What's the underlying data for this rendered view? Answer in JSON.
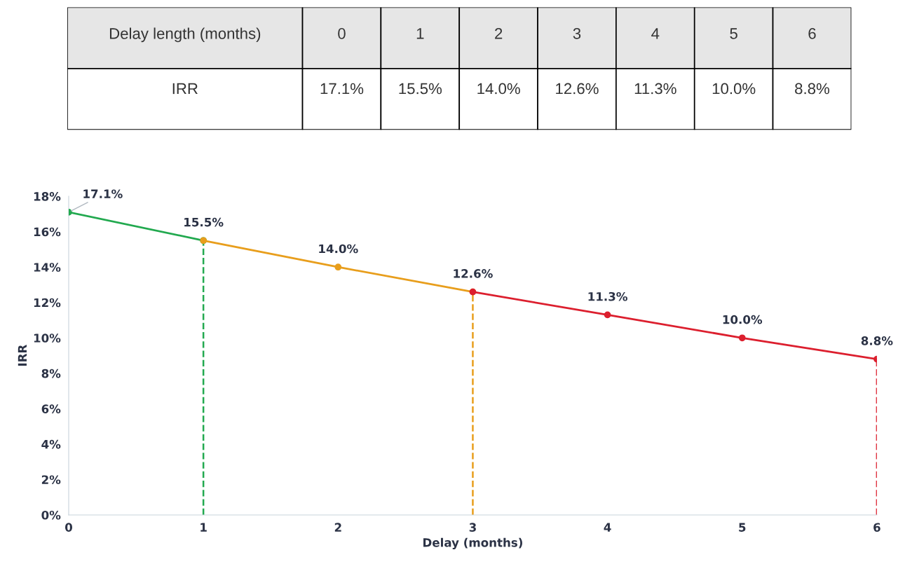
{
  "chart_data": [
    {
      "type": "line",
      "xlabel": "Delay (months)",
      "ylabel": "IRR",
      "annotations": [
        "Delay length (months)",
        "0",
        "1",
        "2",
        "3",
        "4",
        "5",
        "6"
      ],
      "xlim": [
        0,
        6
      ],
      "xticks": [
        0,
        1,
        2,
        3,
        4,
        5,
        6
      ],
      "ylim": [
        0,
        18
      ],
      "yticks": [
        {
          "value": 0,
          "label": "0%"
        },
        {
          "value": 2,
          "label": "2%"
        },
        {
          "value": 4,
          "label": "4%"
        },
        {
          "value": 6,
          "label": "6%"
        },
        {
          "value": 8,
          "label": "8%"
        },
        {
          "value": 10,
          "label": "10%"
        },
        {
          "value": 12,
          "label": "12%"
        },
        {
          "value": 14,
          "label": "14%"
        },
        {
          "value": 16,
          "label": "16%"
        },
        {
          "value": 18,
          "label": "18%"
        }
      ],
      "grid": false,
      "marker": "circle",
      "line_style": "solid",
      "series": [
        {
          "color": "#22a94f",
          "x": [
            0,
            1
          ],
          "values": [
            17.1,
            15.5
          ],
          "value_labels": [
            "17.1%",
            "15.5%"
          ]
        },
        {
          "color": "#e89e1c",
          "x": [
            1,
            2,
            3
          ],
          "values": [
            15.5,
            14.0,
            12.6
          ],
          "value_labels": [
            null,
            "14.0%",
            "12.6%"
          ]
        },
        {
          "color": "#dc1f2e",
          "x": [
            3,
            4,
            5,
            6
          ],
          "values": [
            12.6,
            11.3,
            10.0,
            8.8
          ],
          "value_labels": [
            null,
            "11.3%",
            "10.0%",
            "8.8%"
          ]
        }
      ],
      "ref_lines": [
        {
          "axis": "x",
          "value": 1,
          "color": "#22a94f",
          "line_style": "dashed"
        },
        {
          "axis": "x",
          "value": 3,
          "color": "#e89e1c",
          "line_style": "dashed"
        },
        {
          "axis": "x",
          "value": 6,
          "color": "#dc1f2e",
          "line_style": "dashed"
        }
      ]
    }
  ]
}
